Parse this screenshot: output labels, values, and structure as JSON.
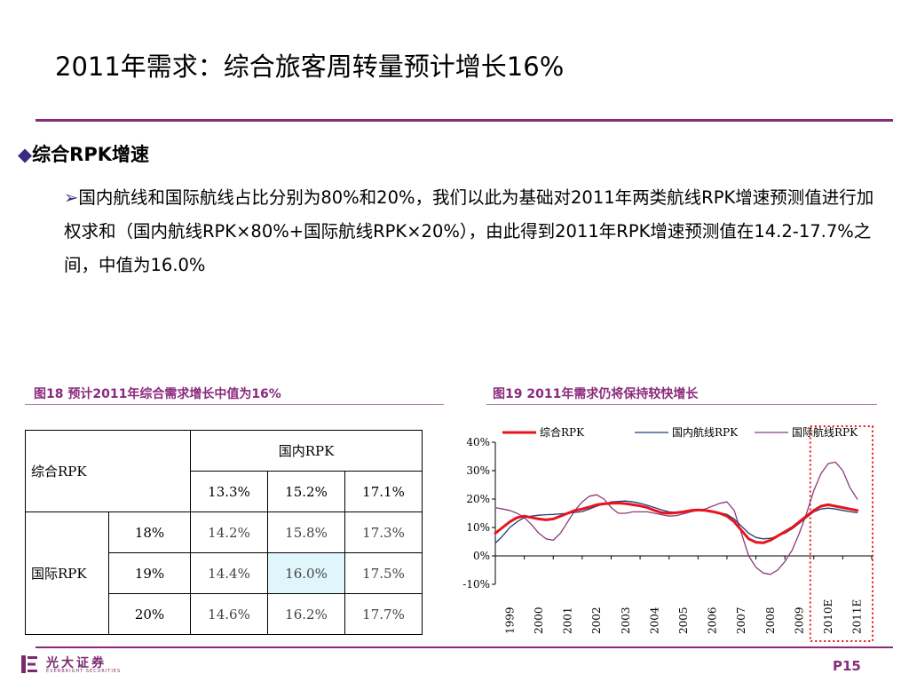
{
  "title": "2011年需求：综合旅客周转量预计增长16%",
  "section": {
    "bullet_icon": "diamond-icon",
    "heading": "综合RPK增速",
    "arrow_icon": "arrow-right-icon",
    "paragraph": "国内航线和国际航线占比分别为80%和20%，我们以此为基础对2011年两类航线RPK增速预测值进行加权求和（国内航线RPK×80%+国际航线RPK×20%），由此得到2011年RPK增速预测值在14.2-17.7%之间，中值为16.0%"
  },
  "figure18": {
    "caption": "图18  预计2011年综合需求增长中值为16%",
    "table": {
      "corner_label": "综合RPK",
      "domestic_header": "国内RPK",
      "domestic_values": [
        "13.3%",
        "15.2%",
        "17.1%"
      ],
      "intl_header": "国际RPK",
      "rows": [
        {
          "intl": "18%",
          "cells": [
            "14.2%",
            "15.8%",
            "17.3%"
          ]
        },
        {
          "intl": "19%",
          "cells": [
            "14.4%",
            "16.0%",
            "17.5%"
          ]
        },
        {
          "intl": "20%",
          "cells": [
            "14.6%",
            "16.2%",
            "17.7%"
          ]
        }
      ],
      "highlight_color": "#dff6fb"
    }
  },
  "figure19": {
    "caption": "图19  2011年需求仍将保持较快增长"
  },
  "chart_data": {
    "type": "line",
    "title": "",
    "x": [
      1999.0,
      1999.25,
      1999.5,
      1999.75,
      2000.0,
      2000.25,
      2000.5,
      2000.75,
      2001.0,
      2001.25,
      2001.5,
      2001.75,
      2002.0,
      2002.25,
      2002.5,
      2002.75,
      2003.0,
      2003.25,
      2003.5,
      2003.75,
      2004.0,
      2004.25,
      2004.5,
      2004.75,
      2005.0,
      2005.25,
      2005.5,
      2005.75,
      2006.0,
      2006.25,
      2006.5,
      2006.75,
      2007.0,
      2007.25,
      2007.5,
      2007.75,
      2008.0,
      2008.25,
      2008.5,
      2008.75,
      2009.0,
      2009.25,
      2009.5,
      2009.75,
      2010.0,
      2010.25,
      2010.5,
      2010.75,
      2011.0,
      2011.25,
      2011.5
    ],
    "x_tick_labels": [
      "1999",
      "2000",
      "2001",
      "2002",
      "2003",
      "2004",
      "2005",
      "2006",
      "2007",
      "2008",
      "2009",
      "2010E",
      "2011E"
    ],
    "ylim": [
      -10,
      40
    ],
    "y_ticks": [
      -10,
      0,
      10,
      20,
      30,
      40
    ],
    "y_tick_format": "percent",
    "legend_position": "top",
    "grid": false,
    "series": [
      {
        "name": "综合RPK",
        "color": "#e8141c",
        "width": 3,
        "values": [
          8,
          10,
          12,
          13.5,
          14,
          13.5,
          13,
          12.7,
          13,
          14,
          15,
          16,
          16.5,
          17.2,
          18,
          18.3,
          18.5,
          18.6,
          18.4,
          18,
          17.6,
          17,
          16,
          15.2,
          15,
          15.2,
          15.5,
          16,
          16.2,
          16,
          15.6,
          15,
          14,
          12,
          9,
          6,
          4.8,
          4.6,
          5.5,
          7,
          8.5,
          10,
          12,
          14,
          16,
          17.5,
          18,
          17.5,
          17,
          16.5,
          16
        ]
      },
      {
        "name": "国内航线RPK",
        "color": "#1f3f7a",
        "width": 1.3,
        "values": [
          4.5,
          7,
          10,
          12,
          13.5,
          14,
          14.3,
          14.5,
          14.6,
          14.8,
          15,
          15.3,
          15.6,
          16.5,
          17.5,
          18.3,
          19,
          19.2,
          19.3,
          19,
          18.5,
          17.8,
          17,
          16.2,
          15.5,
          15.3,
          15.5,
          15.8,
          16,
          16,
          15.7,
          15.2,
          14.6,
          13,
          10.5,
          8,
          6.5,
          6,
          6.2,
          7,
          8,
          9.5,
          11.5,
          13.5,
          15.5,
          16.5,
          16.8,
          16.5,
          16,
          15.6,
          15.2
        ]
      },
      {
        "name": "国际航线RPK",
        "color": "#8b3a7d",
        "width": 1.3,
        "values": [
          17,
          16.5,
          16,
          15,
          13.5,
          11,
          8,
          6,
          5.5,
          8,
          12,
          16,
          19,
          21,
          21.5,
          20,
          17,
          15,
          15,
          15.5,
          15.5,
          15.5,
          15,
          14.5,
          14,
          14.2,
          14.8,
          15.5,
          16,
          16.5,
          17.5,
          18.5,
          19,
          16,
          8,
          0,
          -4,
          -6,
          -6.5,
          -5,
          -2,
          2,
          8,
          15,
          23,
          29,
          32.5,
          33,
          30,
          24,
          20
        ]
      }
    ],
    "highlight_region": {
      "from": "2010E",
      "to": "2011E",
      "style": "dotted",
      "color": "#e8141c"
    }
  },
  "footer": {
    "logo_icon": "everbright-logo-icon",
    "logo_text": "光大证券",
    "logo_subtext": "EVERBRIGHT SECURITIES",
    "page_number": "P15"
  }
}
